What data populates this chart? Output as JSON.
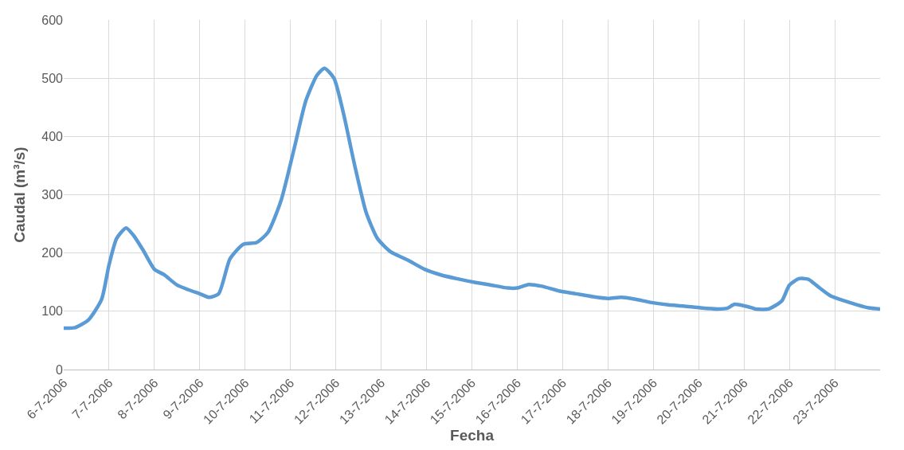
{
  "chart_data": {
    "type": "line",
    "xlabel": "Fecha",
    "ylabel": "Caudal (m³/s)",
    "x": [
      "2006-07-06T00:00",
      "2006-07-06T06:00",
      "2006-07-06T13:00",
      "2006-07-06T20:00",
      "2006-07-07T00:00",
      "2006-07-07T04:00",
      "2006-07-07T09:00",
      "2006-07-07T13:00",
      "2006-07-07T18:00",
      "2006-07-08T00:00",
      "2006-07-08T05:00",
      "2006-07-08T12:00",
      "2006-07-08T18:00",
      "2006-07-09T00:00",
      "2006-07-09T05:00",
      "2006-07-09T10:00",
      "2006-07-09T16:00",
      "2006-07-09T23:00",
      "2006-07-10T06:00",
      "2006-07-10T12:00",
      "2006-07-10T19:00",
      "2006-07-11T02:00",
      "2006-07-11T08:00",
      "2006-07-11T14:00",
      "2006-07-11T18:00",
      "2006-07-11T23:00",
      "2006-07-12T04:00",
      "2006-07-12T10:00",
      "2006-07-12T16:00",
      "2006-07-12T22:00",
      "2006-07-13T05:00",
      "2006-07-13T14:00",
      "2006-07-13T23:00",
      "2006-07-14T08:00",
      "2006-07-14T16:00",
      "2006-07-15T01:00",
      "2006-07-15T10:00",
      "2006-07-15T19:00",
      "2006-07-16T00:00",
      "2006-07-16T06:00",
      "2006-07-16T13:00",
      "2006-07-16T22:00",
      "2006-07-17T07:00",
      "2006-07-17T16:00",
      "2006-07-18T00:00",
      "2006-07-18T07:00",
      "2006-07-18T14:00",
      "2006-07-18T23:00",
      "2006-07-19T08:00",
      "2006-07-19T16:00",
      "2006-07-20T01:00",
      "2006-07-20T10:00",
      "2006-07-20T15:00",
      "2006-07-20T19:00",
      "2006-07-21T02:00",
      "2006-07-21T06:00",
      "2006-07-21T13:00",
      "2006-07-21T20:00",
      "2006-07-22T00:00",
      "2006-07-22T05:00",
      "2006-07-22T10:00",
      "2006-07-22T16:00",
      "2006-07-22T22:00",
      "2006-07-23T05:00",
      "2006-07-23T12:00",
      "2006-07-23T18:00",
      "2006-07-24T00:00"
    ],
    "series": [
      {
        "color": "#5b9bd5",
        "values": [
          71,
          72,
          85,
          120,
          180,
          225,
          243,
          230,
          205,
          172,
          163,
          145,
          137,
          130,
          124,
          130,
          190,
          215,
          218,
          235,
          290,
          380,
          460,
          505,
          517,
          500,
          440,
          350,
          270,
          225,
          202,
          188,
          172,
          162,
          156,
          150,
          145,
          140,
          140,
          146,
          143,
          135,
          130,
          125,
          122,
          124,
          121,
          115,
          111,
          109,
          106,
          104,
          105,
          112,
          108,
          104,
          104,
          118,
          145,
          156,
          155,
          140,
          126,
          118,
          111,
          106,
          104
        ]
      }
    ],
    "xlim": [
      "2006-07-06",
      "2006-07-24"
    ],
    "xticks": [
      {
        "value": "2006-07-06",
        "label": "6-7-2006"
      },
      {
        "value": "2006-07-07",
        "label": "7-7-2006"
      },
      {
        "value": "2006-07-08",
        "label": "8-7-2006"
      },
      {
        "value": "2006-07-09",
        "label": "9-7-2006"
      },
      {
        "value": "2006-07-10",
        "label": "10-7-2006"
      },
      {
        "value": "2006-07-11",
        "label": "11-7-2006"
      },
      {
        "value": "2006-07-12",
        "label": "12-7-2006"
      },
      {
        "value": "2006-07-13",
        "label": "13-7-2006"
      },
      {
        "value": "2006-07-14",
        "label": "14-7-2006"
      },
      {
        "value": "2006-07-15",
        "label": "15-7-2006"
      },
      {
        "value": "2006-07-16",
        "label": "16-7-2006"
      },
      {
        "value": "2006-07-17",
        "label": "17-7-2006"
      },
      {
        "value": "2006-07-18",
        "label": "18-7-2006"
      },
      {
        "value": "2006-07-19",
        "label": "19-7-2006"
      },
      {
        "value": "2006-07-20",
        "label": "20-7-2006"
      },
      {
        "value": "2006-07-21",
        "label": "21-7-2006"
      },
      {
        "value": "2006-07-22",
        "label": "22-7-2006"
      },
      {
        "value": "2006-07-23",
        "label": "23-7-2006"
      }
    ],
    "ylim": [
      0,
      600
    ],
    "yticks": [
      0,
      100,
      200,
      300,
      400,
      500,
      600
    ],
    "grid": true,
    "marker": "none",
    "line_style": "solid"
  }
}
